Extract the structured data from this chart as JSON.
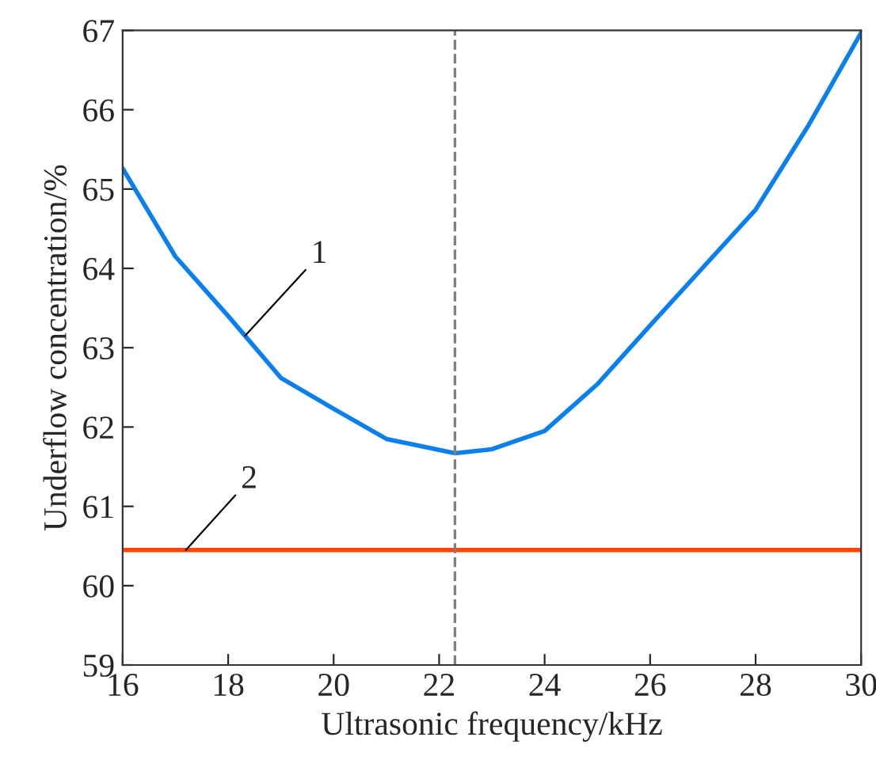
{
  "chart_data": {
    "type": "line",
    "xlabel": "Ultrasonic frequency/kHz",
    "ylabel": "Underflow concentration/%",
    "xlim": [
      16,
      30
    ],
    "xticks": [
      16,
      18,
      20,
      22,
      24,
      26,
      28,
      30
    ],
    "ylim": [
      59,
      67
    ],
    "yticks": [
      59,
      60,
      61,
      62,
      63,
      64,
      65,
      66,
      67
    ],
    "grid": false,
    "marker": "none",
    "line_style": "solid",
    "series": [
      {
        "color": "#0a7ff0",
        "x": [
          16,
          17,
          18,
          18.32,
          19,
          20,
          21,
          22.3,
          23,
          24,
          25,
          26,
          27,
          28,
          29,
          30
        ],
        "values": [
          65.26,
          64.15,
          63.4,
          63.15,
          62.62,
          62.23,
          61.85,
          61.67,
          61.72,
          61.95,
          62.54,
          63.28,
          64.01,
          64.74,
          65.8,
          66.97
        ]
      },
      {
        "color": "#ff4500",
        "x": [
          16,
          30
        ],
        "values": [
          60.45,
          60.45
        ]
      }
    ],
    "ref_lines": [
      {
        "axis": "x",
        "value": 22.3,
        "color": "#808080",
        "line_style": "dashed"
      }
    ],
    "annotations": [
      {
        "text": "1",
        "x": 18.32,
        "y": 63.15
      },
      {
        "text": "2",
        "x": 17.2,
        "y": 60.45
      }
    ]
  }
}
